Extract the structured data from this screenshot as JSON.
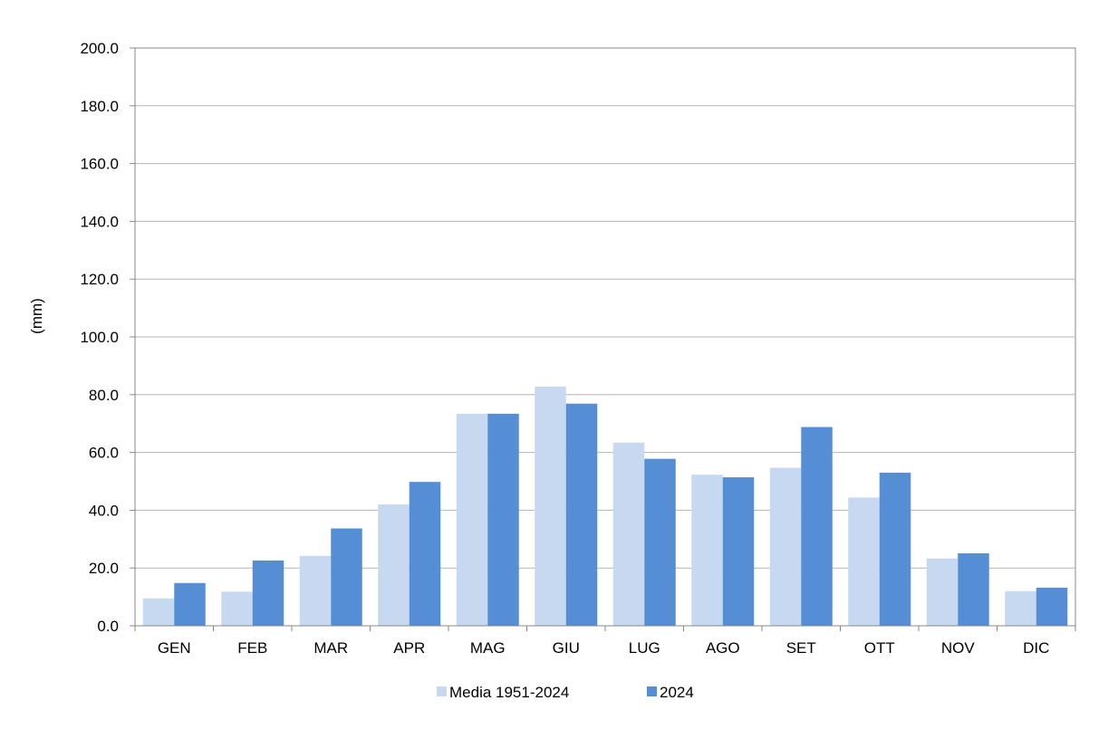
{
  "chart_data": {
    "type": "bar",
    "title": "",
    "xlabel": "",
    "ylabel": "(mm)",
    "ylim": [
      0,
      200
    ],
    "ytick_step": 20,
    "ytick_labels": [
      "0.0",
      "20.0",
      "40.0",
      "60.0",
      "80.0",
      "100.0",
      "120.0",
      "140.0",
      "160.0",
      "180.0",
      "200.0"
    ],
    "grid": true,
    "legend_position": "bottom",
    "categories": [
      "GEN",
      "FEB",
      "MAR",
      "APR",
      "MAG",
      "GIU",
      "LUG",
      "AGO",
      "SET",
      "OTT",
      "NOV",
      "DIC"
    ],
    "series": [
      {
        "name": "Media 1951-2024",
        "color": "#c6d9f1",
        "values": [
          9.5,
          11.8,
          24.2,
          42.0,
          73.4,
          82.8,
          63.4,
          52.3,
          54.7,
          44.4,
          23.3,
          12.0
        ]
      },
      {
        "name": "2024",
        "color": "#558ed5",
        "values": [
          14.8,
          22.6,
          33.7,
          49.8,
          73.4,
          76.9,
          57.8,
          51.4,
          68.8,
          53.0,
          25.1,
          13.2
        ]
      }
    ]
  }
}
